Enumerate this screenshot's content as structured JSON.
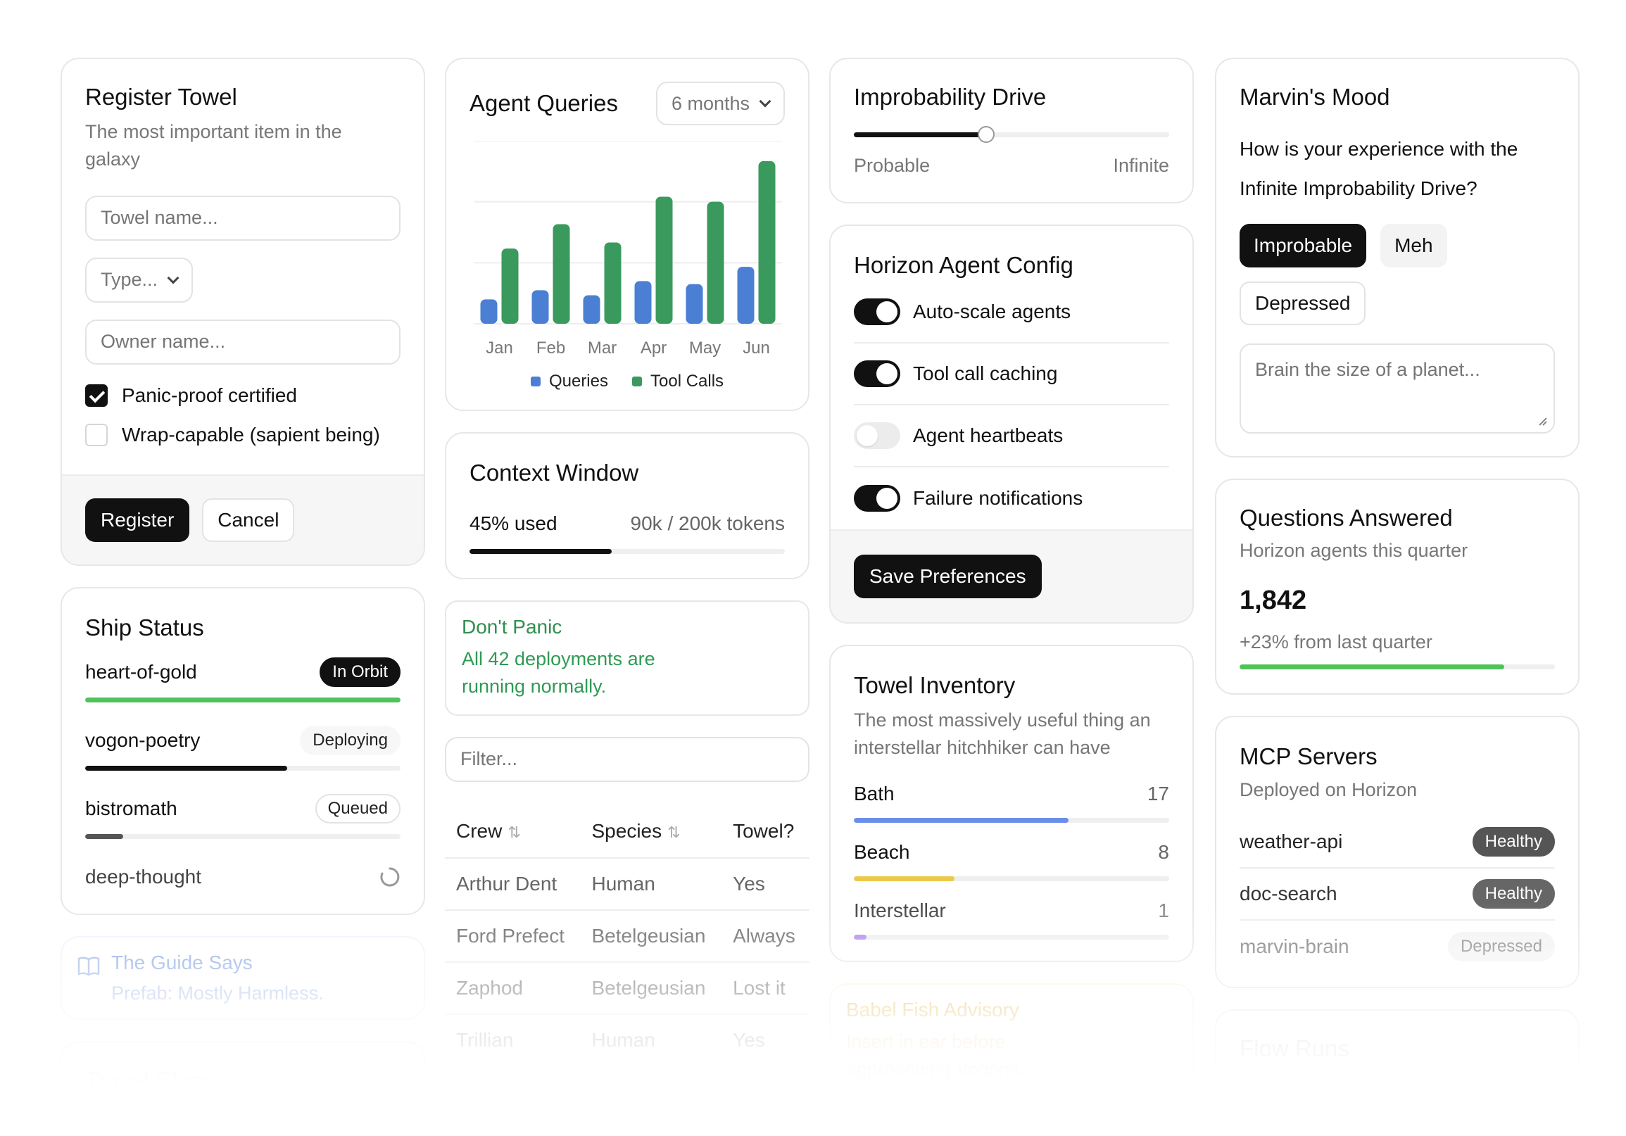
{
  "register_towel": {
    "title": "Register Towel",
    "subtitle": "The most important item in the galaxy",
    "towel_placeholder": "Towel name...",
    "type_label": "Type...",
    "owner_placeholder": "Owner name...",
    "checks": [
      {
        "label": "Panic-proof certified",
        "checked": true
      },
      {
        "label": "Wrap-capable (sapient being)",
        "checked": false
      }
    ],
    "register_label": "Register",
    "cancel_label": "Cancel"
  },
  "ship_status": {
    "title": "Ship Status",
    "ships": [
      {
        "name": "heart-of-gold",
        "status": "In Orbit",
        "progress": 100,
        "color": "#4fc35a"
      },
      {
        "name": "vogon-poetry",
        "status": "Deploying",
        "progress": 64,
        "color": "#111111"
      },
      {
        "name": "bistromath",
        "status": "Queued",
        "progress": 12,
        "color": "#555555"
      },
      {
        "name": "deep-thought",
        "status": "",
        "progress": 0,
        "color": "#cccccc"
      }
    ]
  },
  "guide_says": {
    "title": "The Guide Says",
    "text": "Prefab: Mostly Harmless."
  },
  "travel_class": {
    "title": "Travel Class"
  },
  "agent_queries": {
    "title": "Agent Queries",
    "range_label": "6 months"
  },
  "chart_data": {
    "type": "bar",
    "categories": [
      "Jan",
      "Feb",
      "Mar",
      "Apr",
      "May",
      "Jun"
    ],
    "series": [
      {
        "name": "Queries",
        "color": "#4a7fd4",
        "values": [
          24,
          33,
          28,
          42,
          39,
          56
        ]
      },
      {
        "name": "Tool Calls",
        "color": "#3a9a5e",
        "values": [
          74,
          98,
          80,
          125,
          120,
          160
        ]
      }
    ],
    "ylim": [
      0,
      180
    ],
    "grid": true,
    "legend": "bottom"
  },
  "context_window": {
    "title": "Context Window",
    "used_label": "45% used",
    "tokens_label": "90k / 200k tokens",
    "used_fraction": 0.45
  },
  "dont_panic": {
    "title": "Don't Panic",
    "text": "All 42 deployments are running normally."
  },
  "crew_table": {
    "filter_placeholder": "Filter...",
    "columns": [
      "Crew",
      "Species",
      "Towel?"
    ],
    "rows": [
      [
        "Arthur Dent",
        "Human",
        "Yes"
      ],
      [
        "Ford Prefect",
        "Betelgeusian",
        "Always"
      ],
      [
        "Zaphod",
        "Betelgeusian",
        "Lost it"
      ],
      [
        "Trillian",
        "Human",
        "Yes"
      ]
    ]
  },
  "improbability": {
    "title": "Improbability Drive",
    "min_label": "Probable",
    "max_label": "Infinite",
    "value_fraction": 0.42
  },
  "horizon_config": {
    "title": "Horizon Agent Config",
    "toggles": [
      {
        "label": "Auto-scale agents",
        "on": true
      },
      {
        "label": "Tool call caching",
        "on": true
      },
      {
        "label": "Agent heartbeats",
        "on": false
      },
      {
        "label": "Failure notifications",
        "on": true
      }
    ],
    "save_label": "Save Preferences"
  },
  "towel_inventory": {
    "title": "Towel Inventory",
    "subtitle": "The most massively useful thing an interstellar hitchhiker can have",
    "items": [
      {
        "label": "Bath",
        "count": "17",
        "fraction": 0.68,
        "color": "#6b8fe8"
      },
      {
        "label": "Beach",
        "count": "8",
        "fraction": 0.32,
        "color": "#ecc94b"
      },
      {
        "label": "Interstellar",
        "count": "1",
        "fraction": 0.04,
        "color": "#b388f0"
      }
    ]
  },
  "babel_fish": {
    "title": "Babel Fish Advisory",
    "text": "Insert in ear before approaching Vogons."
  },
  "marvins_mood": {
    "title": "Marvin's Mood",
    "question": "How is your experience with the Infinite Improbability Drive?",
    "options": [
      {
        "label": "Improbable",
        "selected": true
      },
      {
        "label": "Meh",
        "selected": false
      },
      {
        "label": "Depressed",
        "selected": false
      }
    ],
    "textarea_placeholder": "Brain the size of a planet..."
  },
  "questions_answered": {
    "title": "Questions Answered",
    "subtitle": "Horizon agents this quarter",
    "value": "1,842",
    "change": "+23% from last quarter",
    "progress_fraction": 0.84
  },
  "mcp_servers": {
    "title": "MCP Servers",
    "subtitle": "Deployed on Horizon",
    "servers": [
      {
        "name": "weather-api",
        "status": "Healthy"
      },
      {
        "name": "doc-search",
        "status": "Healthy"
      },
      {
        "name": "marvin-brain",
        "status": "Depressed"
      }
    ]
  },
  "flow_runs": {
    "title": "Flow Runs"
  }
}
